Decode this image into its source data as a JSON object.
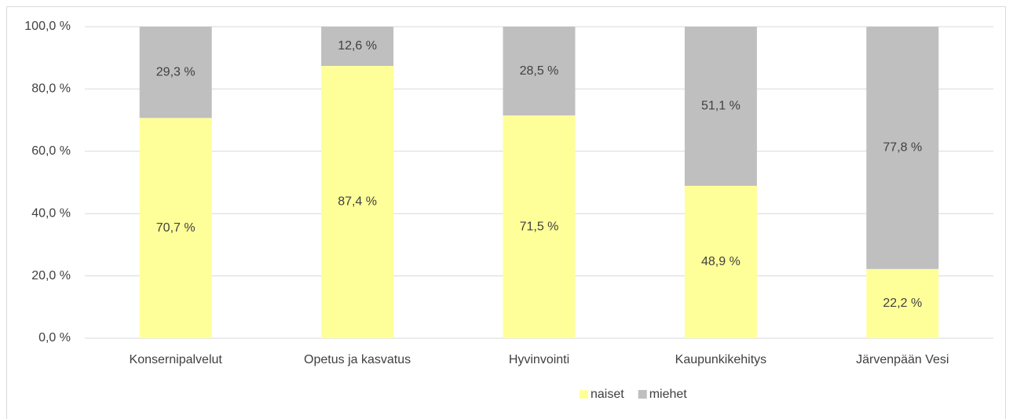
{
  "chart_data": {
    "type": "stacked_bar",
    "categories": [
      "Konsernipalvelut",
      "Opetus ja kasvatus",
      "Hyvinvointi",
      "Kaupunkikehitys",
      "Järvenpään Vesi"
    ],
    "series": [
      {
        "name": "naiset",
        "color": "#ffff99",
        "values": [
          70.7,
          87.4,
          71.5,
          48.9,
          22.2
        ],
        "value_labels": [
          "70,7 %",
          "87,4 %",
          "71,5 %",
          "48,9 %",
          "22,2 %"
        ]
      },
      {
        "name": "miehet",
        "color": "#bfbfbf",
        "values": [
          29.3,
          12.6,
          28.5,
          51.1,
          77.8
        ],
        "value_labels": [
          "29,3 %",
          "12,6 %",
          "28,5 %",
          "51,1 %",
          "77,8 %"
        ]
      }
    ],
    "ylim": [
      0,
      100
    ],
    "yticks": [
      {
        "value": 0,
        "label": "0,0 %"
      },
      {
        "value": 20,
        "label": "20,0 %"
      },
      {
        "value": 40,
        "label": "40,0 %"
      },
      {
        "value": 60,
        "label": "60,0 %"
      },
      {
        "value": 80,
        "label": "80,0 %"
      },
      {
        "value": 100,
        "label": "100,0 %"
      }
    ],
    "grid": true,
    "legend": "bottom"
  }
}
